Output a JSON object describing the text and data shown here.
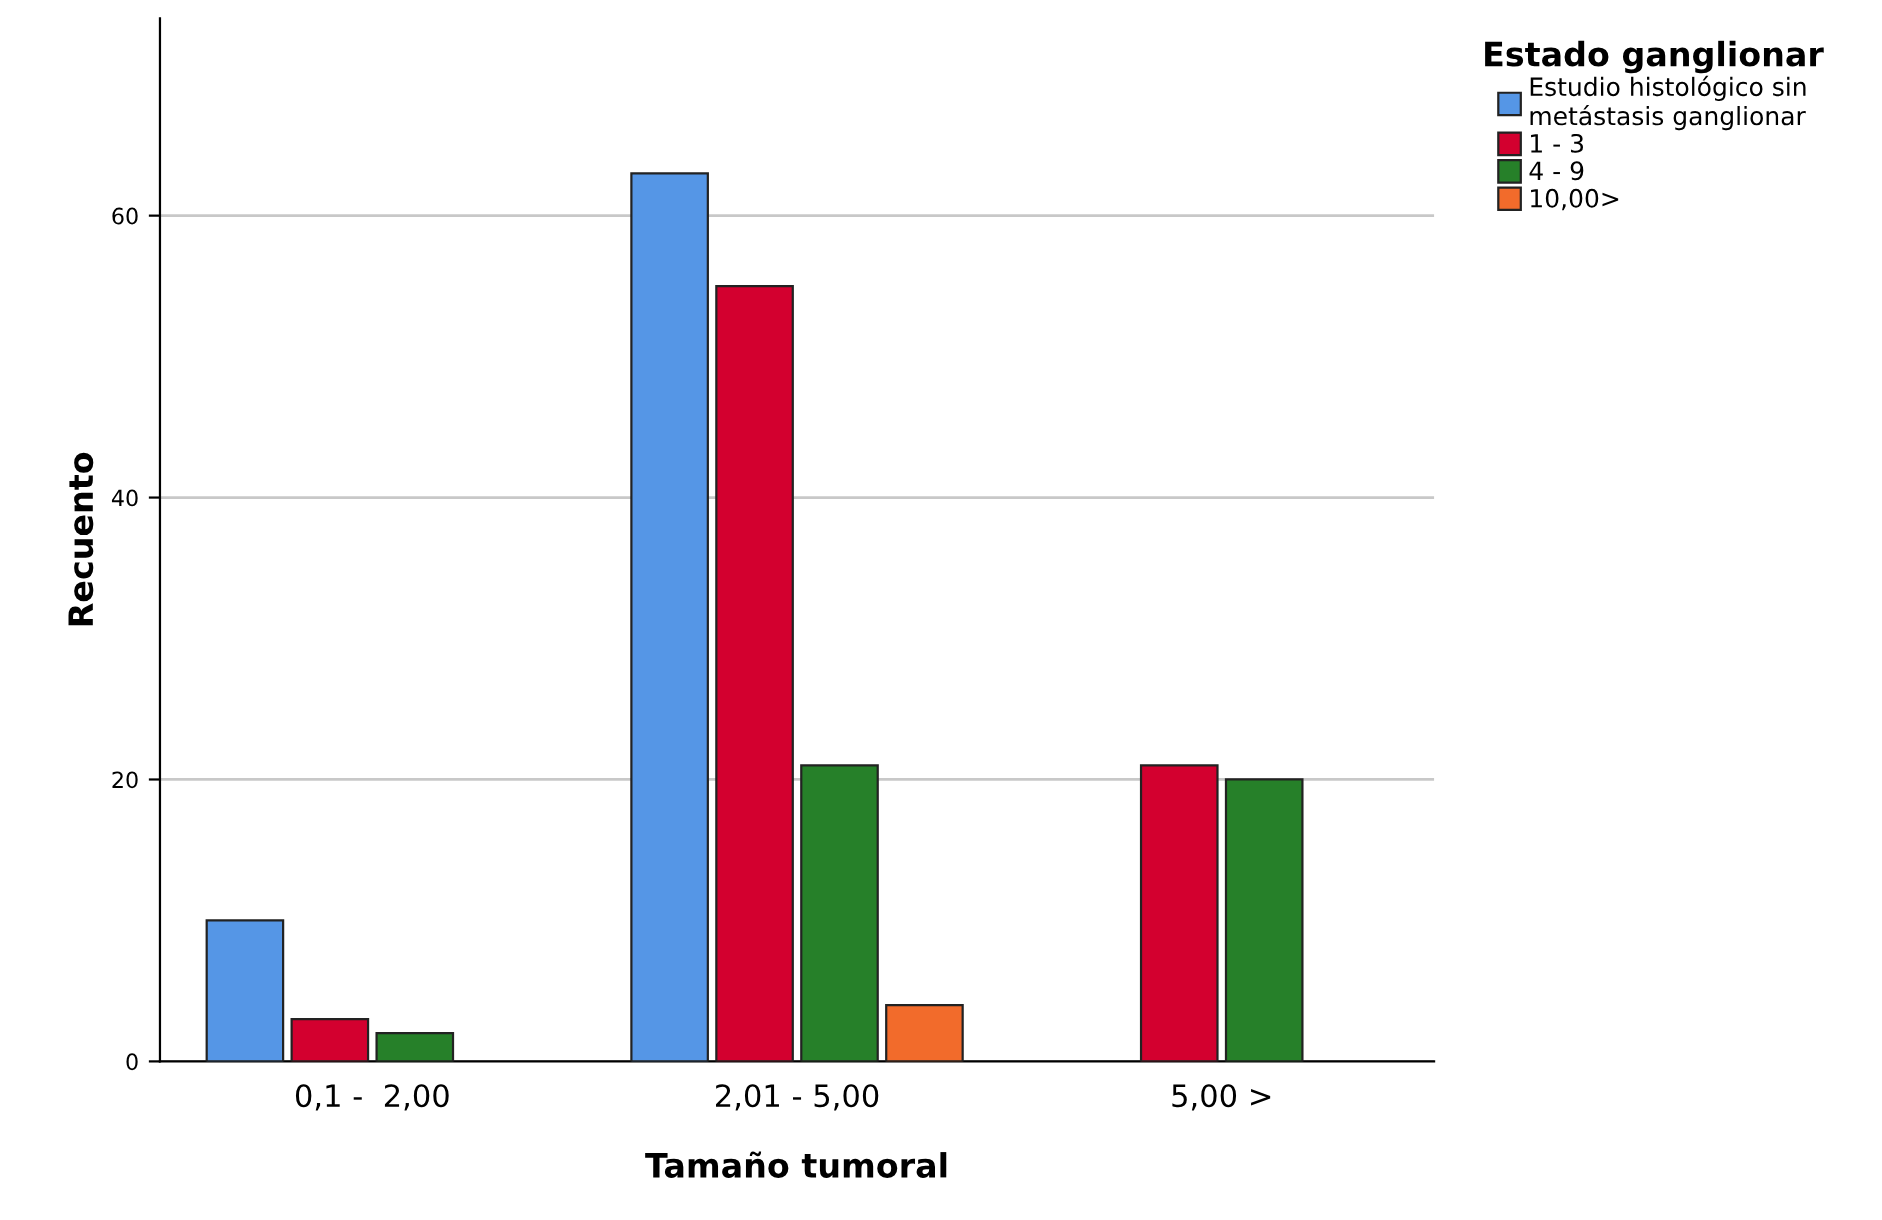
{
  "chart_data": {
    "type": "bar",
    "xlabel": "Tamaño tumoral",
    "ylabel": "Recuento",
    "legend_title": "Estado ganglionar",
    "categories": [
      "0,1 -  2,00",
      "2,01 - 5,00",
      "5,00 >"
    ],
    "series": [
      {
        "name": "Estudio histológico sin\nmetástasis ganglionar",
        "color": "#5596e6",
        "values": [
          10,
          63,
          null
        ]
      },
      {
        "name": "1 - 3",
        "color": "#d3002f",
        "values": [
          3,
          55,
          21
        ]
      },
      {
        "name": "4 - 9",
        "color": "#268029",
        "values": [
          2,
          21,
          20
        ]
      },
      {
        "name": "10,00>",
        "color": "#f26b2b",
        "values": [
          null,
          4,
          null
        ]
      }
    ],
    "ylim": [
      0,
      74
    ],
    "yticks": [
      0,
      20,
      40,
      60
    ],
    "grid": "y",
    "legend": "top right"
  }
}
